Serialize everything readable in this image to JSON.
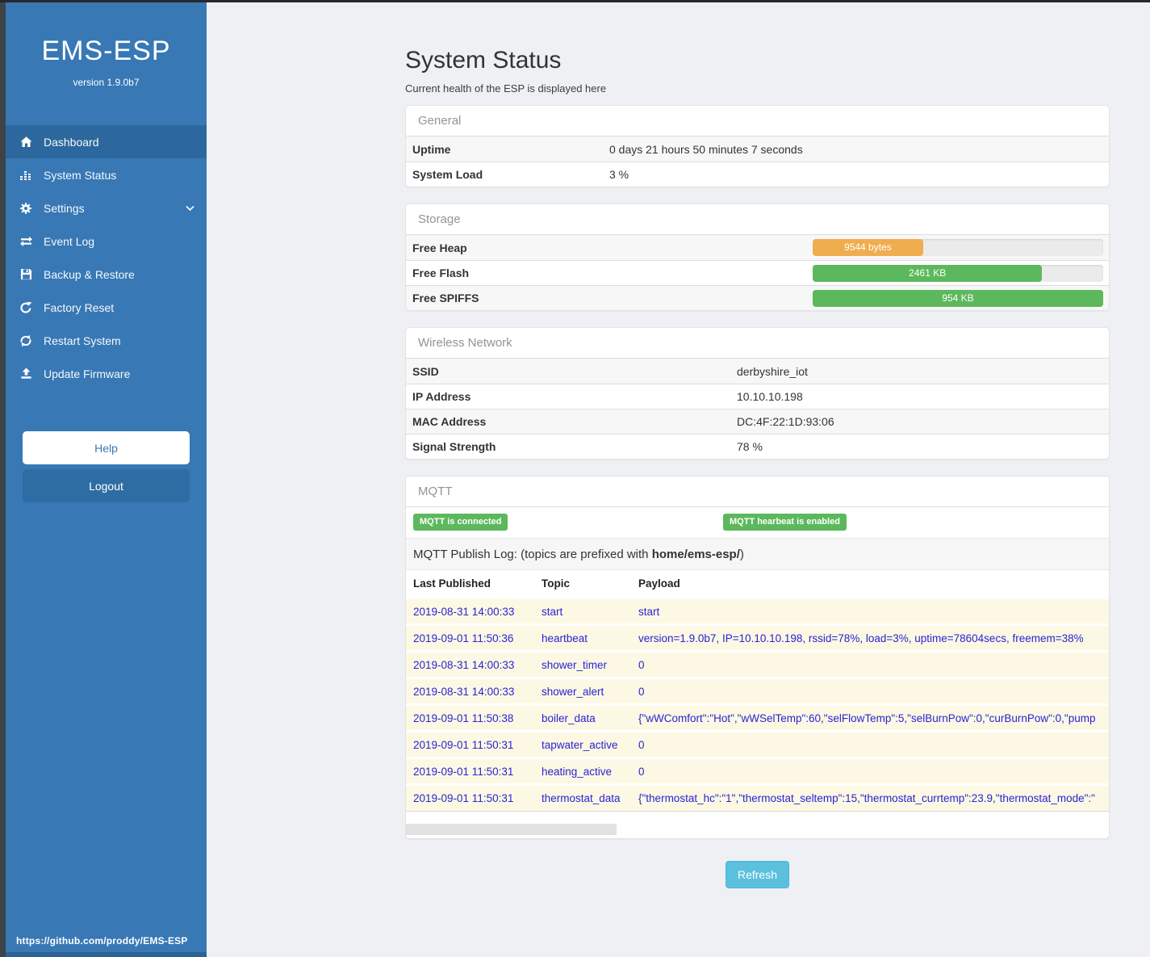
{
  "colors": {
    "sidebar_blue": "#3878b5",
    "sidebar_active": "#2c689d",
    "warning_orange": "#f0ad4e",
    "success_green": "#5cb85c",
    "info_blue": "#5bc0de",
    "log_text_blue": "#2a23d6",
    "log_row_bg": "#fcf8e3"
  },
  "sidebar": {
    "title": "EMS-ESP",
    "version": "version 1.9.0b7",
    "nav": [
      {
        "label": "Dashboard",
        "icon": "home-icon",
        "active": true
      },
      {
        "label": "System Status",
        "icon": "bar-chart-icon",
        "active": false
      },
      {
        "label": "Settings",
        "icon": "gear-icon",
        "active": false,
        "has_chevron": true
      },
      {
        "label": "Event Log",
        "icon": "exchange-icon",
        "active": false
      },
      {
        "label": "Backup & Restore",
        "icon": "save-icon",
        "active": false
      },
      {
        "label": "Factory Reset",
        "icon": "rotate-right-icon",
        "active": false
      },
      {
        "label": "Restart System",
        "icon": "refresh-icon",
        "active": false
      },
      {
        "label": "Update Firmware",
        "icon": "upload-icon",
        "active": false
      }
    ],
    "help_label": "Help",
    "logout_label": "Logout",
    "footer_link": "https://github.com/proddy/EMS-ESP"
  },
  "header": {
    "title": "System Status",
    "subtitle": "Current health of the ESP is displayed here"
  },
  "general": {
    "heading": "General",
    "rows": [
      {
        "label": "Uptime",
        "value": "0 days 21 hours 50 minutes 7 seconds"
      },
      {
        "label": "System Load",
        "value": "3 %"
      }
    ]
  },
  "storage": {
    "heading": "Storage",
    "rows": [
      {
        "label": "Free Heap",
        "value": "9544 bytes",
        "percent": 38,
        "color": "#f0ad4e"
      },
      {
        "label": "Free Flash",
        "value": "2461 KB",
        "percent": 79,
        "color": "#5cb85c"
      },
      {
        "label": "Free SPIFFS",
        "value": "954 KB",
        "percent": 100,
        "color": "#5cb85c"
      }
    ]
  },
  "wireless": {
    "heading": "Wireless Network",
    "rows": [
      {
        "label": "SSID",
        "value": "derbyshire_iot"
      },
      {
        "label": "IP Address",
        "value": "10.10.10.198"
      },
      {
        "label": "MAC Address",
        "value": "DC:4F:22:1D:93:06"
      },
      {
        "label": "Signal Strength",
        "value": "78 %"
      }
    ]
  },
  "mqtt": {
    "heading": "MQTT",
    "badges": [
      "MQTT is connected",
      "MQTT hearbeat is enabled"
    ],
    "publish_log_prefix": "MQTT Publish Log: (topics are prefixed with ",
    "publish_log_bold": "home/ems-esp/",
    "publish_log_suffix": ")",
    "columns": [
      "Last Published",
      "Topic",
      "Payload"
    ],
    "rows": [
      {
        "time": "2019-08-31 14:00:33",
        "topic": "start",
        "payload": "start"
      },
      {
        "time": "2019-09-01 11:50:36",
        "topic": "heartbeat",
        "payload": "version=1.9.0b7, IP=10.10.10.198, rssid=78%, load=3%, uptime=78604secs, freemem=38%"
      },
      {
        "time": "2019-08-31 14:00:33",
        "topic": "shower_timer",
        "payload": "0"
      },
      {
        "time": "2019-08-31 14:00:33",
        "topic": "shower_alert",
        "payload": "0"
      },
      {
        "time": "2019-09-01 11:50:38",
        "topic": "boiler_data",
        "payload": "{\"wWComfort\":\"Hot\",\"wWSelTemp\":60,\"selFlowTemp\":5,\"selBurnPow\":0,\"curBurnPow\":0,\"pump"
      },
      {
        "time": "2019-09-01 11:50:31",
        "topic": "tapwater_active",
        "payload": "0"
      },
      {
        "time": "2019-09-01 11:50:31",
        "topic": "heating_active",
        "payload": "0"
      },
      {
        "time": "2019-09-01 11:50:31",
        "topic": "thermostat_data",
        "payload": "{\"thermostat_hc\":\"1\",\"thermostat_seltemp\":15,\"thermostat_currtemp\":23.9,\"thermostat_mode\":\""
      }
    ]
  },
  "refresh_label": "Refresh"
}
